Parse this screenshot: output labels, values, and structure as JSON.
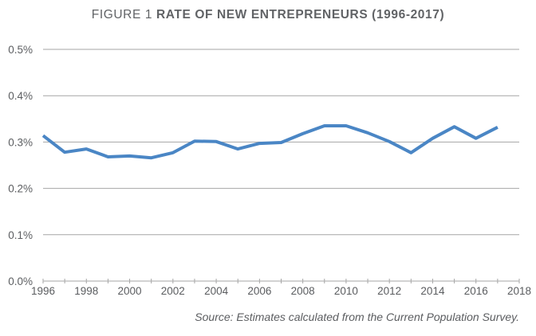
{
  "chart_data": {
    "type": "line",
    "title_prefix": "FIGURE 1",
    "title": "RATE OF NEW ENTREPRENEURS (1996-2017)",
    "xlabel": "",
    "ylabel": "",
    "x": [
      1996,
      1997,
      1998,
      1999,
      2000,
      2001,
      2002,
      2003,
      2004,
      2005,
      2006,
      2007,
      2008,
      2009,
      2010,
      2011,
      2012,
      2013,
      2014,
      2015,
      2016,
      2017
    ],
    "series": [
      {
        "name": "Rate of new entrepreneurs",
        "color": "#4a86c5",
        "values": [
          0.314,
          0.278,
          0.285,
          0.268,
          0.27,
          0.266,
          0.277,
          0.302,
          0.301,
          0.285,
          0.297,
          0.299,
          0.318,
          0.335,
          0.335,
          0.32,
          0.301,
          0.277,
          0.308,
          0.333,
          0.308,
          0.332
        ]
      }
    ],
    "xlim": [
      1996,
      2018
    ],
    "ylim": [
      0,
      0.5
    ],
    "x_ticks": [
      1996,
      1998,
      2000,
      2002,
      2004,
      2006,
      2008,
      2010,
      2012,
      2014,
      2016,
      2018
    ],
    "y_ticks": [
      0.0,
      0.1,
      0.2,
      0.3,
      0.4,
      0.5
    ],
    "y_tick_labels": [
      "0.0%",
      "0.1%",
      "0.2%",
      "0.3%",
      "0.4%",
      "0.5%"
    ],
    "grid": "horizontal",
    "legend": "none",
    "gridline_color": "#a6a6a6",
    "source_note": "Source: Estimates calculated from the Current Population Survey."
  }
}
